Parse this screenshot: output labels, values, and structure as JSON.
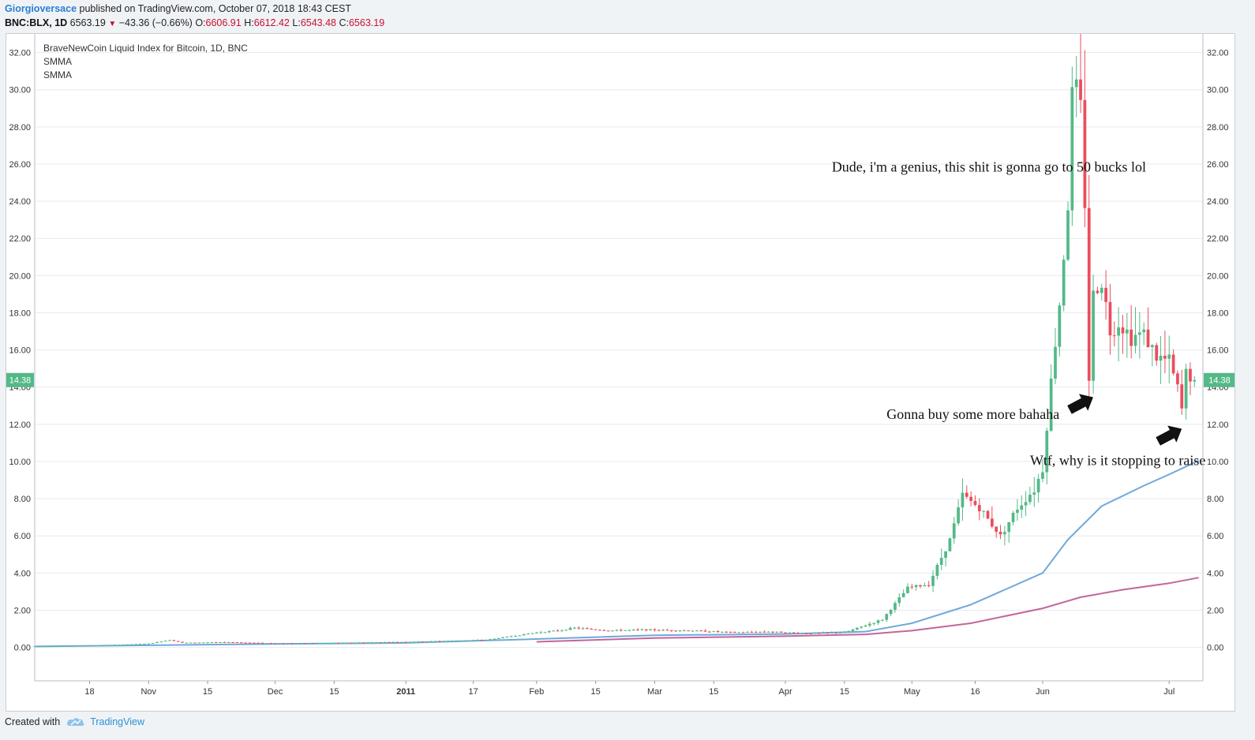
{
  "header": {
    "author": "Giorgioversace",
    "published": "published on TradingView.com, October 07, 2018 18:43 CEST",
    "symbol": "BNC:BLX, 1D",
    "last": "6563.19",
    "change": "−43.36 (−0.66%)",
    "o_label": "O:",
    "o_value": "6606.91",
    "h_label": "H:",
    "h_value": "6612.42",
    "l_label": "L:",
    "l_value": "6543.48",
    "c_label": "C:",
    "c_value": "6563.19"
  },
  "legend": {
    "title": "BraveNewCoin Liquid Index for Bitcoin, 1D, BNC",
    "ind1": "SMMA",
    "ind2": "SMMA"
  },
  "footer": {
    "created_with": "Created with",
    "brand": "TradingView"
  },
  "colors": {
    "up": "#53b987",
    "down": "#eb4d5c",
    "smma_fast": "#6fa8dc",
    "smma_slow": "#c2669a",
    "price_label": "#53b987",
    "grid": "#e6e9ee"
  },
  "chart_data": {
    "type": "candlestick",
    "title": "BraveNewCoin Liquid Index for Bitcoin, 1D, BNC",
    "ylim": [
      -1.8,
      33.0
    ],
    "y_ticks": [
      "0.00",
      "2.00",
      "4.00",
      "6.00",
      "8.00",
      "10.00",
      "12.00",
      "14.00",
      "16.00",
      "18.00",
      "20.00",
      "22.00",
      "24.00",
      "26.00",
      "28.00",
      "30.00",
      "32.00"
    ],
    "x_ticks": [
      {
        "date": "2010-10-18",
        "label": "18",
        "bold": false
      },
      {
        "date": "2010-11-01",
        "label": "Nov",
        "bold": false
      },
      {
        "date": "2010-11-15",
        "label": "15",
        "bold": false
      },
      {
        "date": "2010-12-01",
        "label": "Dec",
        "bold": false
      },
      {
        "date": "2010-12-15",
        "label": "15",
        "bold": false
      },
      {
        "date": "2011-01-01",
        "label": "2011",
        "bold": true
      },
      {
        "date": "2011-01-17",
        "label": "17",
        "bold": false
      },
      {
        "date": "2011-02-01",
        "label": "Feb",
        "bold": false
      },
      {
        "date": "2011-02-15",
        "label": "15",
        "bold": false
      },
      {
        "date": "2011-03-01",
        "label": "Mar",
        "bold": false
      },
      {
        "date": "2011-03-15",
        "label": "15",
        "bold": false
      },
      {
        "date": "2011-04-01",
        "label": "Apr",
        "bold": false
      },
      {
        "date": "2011-04-15",
        "label": "15",
        "bold": false
      },
      {
        "date": "2011-05-01",
        "label": "May",
        "bold": false
      },
      {
        "date": "2011-05-16",
        "label": "16",
        "bold": false
      },
      {
        "date": "2011-06-01",
        "label": "Jun",
        "bold": false
      },
      {
        "date": "2011-07-01",
        "label": "Jul",
        "bold": false
      }
    ],
    "x_range": [
      "2010-10-05",
      "2011-07-09"
    ],
    "last_price": "14.38",
    "close_series": [
      [
        "2010-10-05",
        0.06
      ],
      [
        "2010-10-20",
        0.1
      ],
      [
        "2010-11-01",
        0.2
      ],
      [
        "2010-11-06",
        0.4
      ],
      [
        "2010-11-09",
        0.25
      ],
      [
        "2010-11-20",
        0.28
      ],
      [
        "2010-12-01",
        0.22
      ],
      [
        "2010-12-15",
        0.24
      ],
      [
        "2011-01-01",
        0.3
      ],
      [
        "2011-01-20",
        0.4
      ],
      [
        "2011-02-01",
        0.8
      ],
      [
        "2011-02-06",
        0.9
      ],
      [
        "2011-02-10",
        1.05
      ],
      [
        "2011-02-18",
        0.9
      ],
      [
        "2011-02-26",
        0.95
      ],
      [
        "2011-03-10",
        0.9
      ],
      [
        "2011-03-20",
        0.8
      ],
      [
        "2011-03-28",
        0.85
      ],
      [
        "2011-04-05",
        0.75
      ],
      [
        "2011-04-15",
        0.8
      ],
      [
        "2011-04-24",
        1.5
      ],
      [
        "2011-04-30",
        3.2
      ],
      [
        "2011-05-05",
        3.4
      ],
      [
        "2011-05-10",
        5.8
      ],
      [
        "2011-05-13",
        8.2
      ],
      [
        "2011-05-17",
        7.5
      ],
      [
        "2011-05-22",
        6.0
      ],
      [
        "2011-05-26",
        7.5
      ],
      [
        "2011-05-30",
        8.5
      ],
      [
        "2011-06-01",
        9.6
      ],
      [
        "2011-06-03",
        14.3
      ],
      [
        "2011-06-05",
        18.5
      ],
      [
        "2011-06-07",
        23.8
      ],
      [
        "2011-06-08",
        29.7
      ],
      [
        "2011-06-09",
        30.0
      ],
      [
        "2011-06-10",
        28.9
      ],
      [
        "2011-06-11",
        24.0
      ],
      [
        "2011-06-12",
        14.5
      ],
      [
        "2011-06-13",
        18.9
      ],
      [
        "2011-06-15",
        19.8
      ],
      [
        "2011-06-17",
        17.0
      ],
      [
        "2011-06-19",
        17.5
      ],
      [
        "2011-06-22",
        16.7
      ],
      [
        "2011-06-25",
        16.9
      ],
      [
        "2011-06-28",
        15.6
      ],
      [
        "2011-07-01",
        15.4
      ],
      [
        "2011-07-03",
        13.9
      ],
      [
        "2011-07-04",
        12.8
      ],
      [
        "2011-07-05",
        14.8
      ],
      [
        "2011-07-07",
        14.38
      ]
    ],
    "smma_fast": [
      [
        "2010-10-05",
        0.05
      ],
      [
        "2010-12-01",
        0.18
      ],
      [
        "2011-01-01",
        0.24
      ],
      [
        "2011-02-01",
        0.45
      ],
      [
        "2011-03-01",
        0.65
      ],
      [
        "2011-04-01",
        0.72
      ],
      [
        "2011-04-20",
        0.85
      ],
      [
        "2011-05-01",
        1.3
      ],
      [
        "2011-05-15",
        2.3
      ],
      [
        "2011-06-01",
        4.0
      ],
      [
        "2011-06-07",
        5.8
      ],
      [
        "2011-06-15",
        7.6
      ],
      [
        "2011-06-25",
        8.7
      ],
      [
        "2011-07-01",
        9.3
      ],
      [
        "2011-07-08",
        10.05
      ]
    ],
    "smma_slow": [
      [
        "2011-02-01",
        0.3
      ],
      [
        "2011-03-01",
        0.5
      ],
      [
        "2011-04-01",
        0.6
      ],
      [
        "2011-04-20",
        0.7
      ],
      [
        "2011-05-01",
        0.9
      ],
      [
        "2011-05-15",
        1.3
      ],
      [
        "2011-06-01",
        2.1
      ],
      [
        "2011-06-10",
        2.7
      ],
      [
        "2011-06-20",
        3.1
      ],
      [
        "2011-07-01",
        3.45
      ],
      [
        "2011-07-08",
        3.75
      ]
    ],
    "annotations": [
      {
        "text": "Dude, i'm a genius, this shit is gonna go to 50 bucks lol",
        "date": "2011-04-12",
        "price": 25.6
      },
      {
        "text": "Gonna buy some more bahaha",
        "date": "2011-04-25",
        "price": 12.3
      },
      {
        "text": "Wtf, why is it stopping to raise",
        "date": "2011-05-29",
        "price": 9.8
      }
    ],
    "arrows": [
      {
        "date": "2011-06-10",
        "price": 13.1
      },
      {
        "date": "2011-07-01",
        "price": 11.4
      }
    ]
  }
}
